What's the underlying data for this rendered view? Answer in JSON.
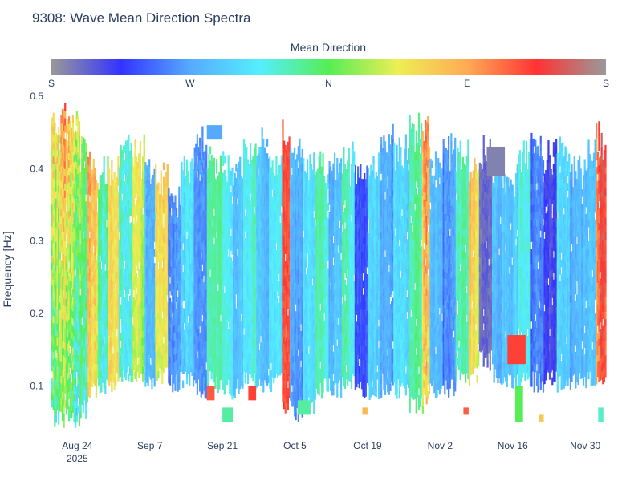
{
  "chart_data": {
    "type": "heatmap",
    "title": "9308: Wave Mean Direction Spectra",
    "ylabel": "Frequency [Hz]",
    "xlabel": "",
    "ylim": [
      0.035,
      0.5
    ],
    "yticks": [
      {
        "value": 0.1,
        "label": "0.1"
      },
      {
        "value": 0.2,
        "label": "0.2"
      },
      {
        "value": 0.3,
        "label": "0.3"
      },
      {
        "value": 0.4,
        "label": "0.4"
      },
      {
        "value": 0.5,
        "label": "0.5"
      }
    ],
    "x_start": "2025-08-19",
    "x_end": "2025-12-04",
    "x_range_days": [
      0,
      107
    ],
    "xticks": [
      {
        "day": 5,
        "label": "Aug 24",
        "sublabel": "2025"
      },
      {
        "day": 19,
        "label": "Sep 7",
        "sublabel": ""
      },
      {
        "day": 33,
        "label": "Sep 21",
        "sublabel": ""
      },
      {
        "day": 47,
        "label": "Oct 5",
        "sublabel": ""
      },
      {
        "day": 61,
        "label": "Oct 19",
        "sublabel": ""
      },
      {
        "day": 75,
        "label": "Nov 2",
        "sublabel": ""
      },
      {
        "day": 89,
        "label": "Nov 16",
        "sublabel": ""
      },
      {
        "day": 103,
        "label": "Nov 30",
        "sublabel": ""
      }
    ],
    "colorbar": {
      "title": "Mean Direction",
      "range_deg": [
        0,
        360
      ],
      "ticks": [
        {
          "value": 0,
          "label": "S"
        },
        {
          "value": 90,
          "label": "W"
        },
        {
          "value": 180,
          "label": "N"
        },
        {
          "value": 270,
          "label": "E"
        },
        {
          "value": 360,
          "label": "S"
        }
      ],
      "colorscale": [
        [
          0.0,
          "#999999"
        ],
        [
          0.125,
          "#3333ff"
        ],
        [
          0.25,
          "#55aaff"
        ],
        [
          0.375,
          "#55eeff"
        ],
        [
          0.5,
          "#55ee55"
        ],
        [
          0.625,
          "#eeee55"
        ],
        [
          0.75,
          "#ffaa55"
        ],
        [
          0.875,
          "#ff3333"
        ],
        [
          1.0,
          "#999999"
        ]
      ]
    },
    "freq_bin_hz": 0.01,
    "segments": [
      {
        "day_start": 0.0,
        "day_end": 5.5,
        "f_min": 0.05,
        "f_max": 0.47,
        "dir_mean": 210,
        "dir_spread": 160,
        "drift": 40
      },
      {
        "day_start": 5.5,
        "day_end": 7.0,
        "f_min": 0.06,
        "f_max": 0.42,
        "dir_mean": 170,
        "dir_spread": 120,
        "drift": 20
      },
      {
        "day_start": 7.0,
        "day_end": 9.0,
        "f_min": 0.09,
        "f_max": 0.4,
        "dir_mean": 230,
        "dir_spread": 90,
        "drift": 15
      },
      {
        "day_start": 9.0,
        "day_end": 11.0,
        "f_min": 0.09,
        "f_max": 0.39,
        "dir_mean": 150,
        "dir_spread": 80,
        "drift": 10
      },
      {
        "day_start": 11.0,
        "day_end": 13.0,
        "f_min": 0.1,
        "f_max": 0.4,
        "dir_mean": 240,
        "dir_spread": 60,
        "drift": 0
      },
      {
        "day_start": 13.0,
        "day_end": 15.5,
        "f_min": 0.1,
        "f_max": 0.43,
        "dir_mean": 150,
        "dir_spread": 70,
        "drift": 5
      },
      {
        "day_start": 15.5,
        "day_end": 18.0,
        "f_min": 0.11,
        "f_max": 0.42,
        "dir_mean": 215,
        "dir_spread": 60,
        "drift": 10
      },
      {
        "day_start": 18.0,
        "day_end": 20.0,
        "f_min": 0.1,
        "f_max": 0.4,
        "dir_mean": 100,
        "dir_spread": 60,
        "drift": -5
      },
      {
        "day_start": 20.0,
        "day_end": 22.5,
        "f_min": 0.11,
        "f_max": 0.39,
        "dir_mean": 230,
        "dir_spread": 60,
        "drift": 15
      },
      {
        "day_start": 22.5,
        "day_end": 25.0,
        "f_min": 0.1,
        "f_max": 0.36,
        "dir_mean": 80,
        "dir_spread": 50,
        "drift": 0
      },
      {
        "day_start": 25.0,
        "day_end": 27.5,
        "f_min": 0.1,
        "f_max": 0.4,
        "dir_mean": 120,
        "dir_spread": 60,
        "drift": 10
      },
      {
        "day_start": 27.5,
        "day_end": 30.0,
        "f_min": 0.09,
        "f_max": 0.44,
        "dir_mean": 85,
        "dir_spread": 45,
        "drift": 0
      },
      {
        "day_start": 30.0,
        "day_end": 33.0,
        "f_min": 0.1,
        "f_max": 0.41,
        "dir_mean": 160,
        "dir_spread": 35,
        "drift": 5
      },
      {
        "day_start": 33.0,
        "day_end": 35.0,
        "f_min": 0.09,
        "f_max": 0.4,
        "dir_mean": 135,
        "dir_spread": 40,
        "drift": -5
      },
      {
        "day_start": 35.0,
        "day_end": 37.0,
        "f_min": 0.09,
        "f_max": 0.4,
        "dir_mean": 110,
        "dir_spread": 40,
        "drift": 0
      },
      {
        "day_start": 37.0,
        "day_end": 39.5,
        "f_min": 0.1,
        "f_max": 0.42,
        "dir_mean": 145,
        "dir_spread": 45,
        "drift": 5
      },
      {
        "day_start": 39.5,
        "day_end": 42.0,
        "f_min": 0.1,
        "f_max": 0.43,
        "dir_mean": 100,
        "dir_spread": 45,
        "drift": 0
      },
      {
        "day_start": 42.0,
        "day_end": 44.5,
        "f_min": 0.1,
        "f_max": 0.4,
        "dir_mean": 130,
        "dir_spread": 45,
        "drift": 5
      },
      {
        "day_start": 44.5,
        "day_end": 46.0,
        "f_min": 0.07,
        "f_max": 0.45,
        "dir_mean": 310,
        "dir_spread": 50,
        "drift": 0
      },
      {
        "day_start": 46.0,
        "day_end": 48.5,
        "f_min": 0.06,
        "f_max": 0.43,
        "dir_mean": 85,
        "dir_spread": 45,
        "drift": 10
      },
      {
        "day_start": 48.5,
        "day_end": 51.0,
        "f_min": 0.07,
        "f_max": 0.41,
        "dir_mean": 125,
        "dir_spread": 40,
        "drift": 0
      },
      {
        "day_start": 51.0,
        "day_end": 53.5,
        "f_min": 0.09,
        "f_max": 0.4,
        "dir_mean": 150,
        "dir_spread": 45,
        "drift": 5
      },
      {
        "day_start": 53.5,
        "day_end": 56.0,
        "f_min": 0.09,
        "f_max": 0.4,
        "dir_mean": 110,
        "dir_spread": 45,
        "drift": -5
      },
      {
        "day_start": 56.0,
        "day_end": 58.5,
        "f_min": 0.1,
        "f_max": 0.41,
        "dir_mean": 145,
        "dir_spread": 50,
        "drift": 0
      },
      {
        "day_start": 58.5,
        "day_end": 61.0,
        "f_min": 0.09,
        "f_max": 0.4,
        "dir_mean": 60,
        "dir_spread": 45,
        "drift": 0
      },
      {
        "day_start": 61.0,
        "day_end": 63.5,
        "f_min": 0.09,
        "f_max": 0.4,
        "dir_mean": 120,
        "dir_spread": 45,
        "drift": 5
      },
      {
        "day_start": 63.5,
        "day_end": 66.0,
        "f_min": 0.09,
        "f_max": 0.44,
        "dir_mean": 90,
        "dir_spread": 40,
        "drift": 0
      },
      {
        "day_start": 66.0,
        "day_end": 69.0,
        "f_min": 0.09,
        "f_max": 0.42,
        "dir_mean": 120,
        "dir_spread": 45,
        "drift": -5
      },
      {
        "day_start": 69.0,
        "day_end": 71.5,
        "f_min": 0.07,
        "f_max": 0.45,
        "dir_mean": 160,
        "dir_spread": 55,
        "drift": 0
      },
      {
        "day_start": 71.5,
        "day_end": 73.0,
        "f_min": 0.07,
        "f_max": 0.45,
        "dir_mean": 240,
        "dir_spread": 120,
        "drift": 20
      },
      {
        "day_start": 73.0,
        "day_end": 75.5,
        "f_min": 0.09,
        "f_max": 0.4,
        "dir_mean": 100,
        "dir_spread": 45,
        "drift": 0
      },
      {
        "day_start": 75.5,
        "day_end": 78.0,
        "f_min": 0.09,
        "f_max": 0.42,
        "dir_mean": 85,
        "dir_spread": 45,
        "drift": 5
      },
      {
        "day_start": 78.0,
        "day_end": 80.5,
        "f_min": 0.11,
        "f_max": 0.42,
        "dir_mean": 150,
        "dir_spread": 60,
        "drift": 0
      },
      {
        "day_start": 80.5,
        "day_end": 82.5,
        "f_min": 0.11,
        "f_max": 0.4,
        "dir_mean": 230,
        "dir_spread": 60,
        "drift": 10
      },
      {
        "day_start": 82.5,
        "day_end": 85.0,
        "f_min": 0.13,
        "f_max": 0.42,
        "dir_mean": 20,
        "dir_spread": 40,
        "drift": 0
      },
      {
        "day_start": 85.0,
        "day_end": 87.0,
        "f_min": 0.11,
        "f_max": 0.4,
        "dir_mean": 95,
        "dir_spread": 45,
        "drift": 5
      },
      {
        "day_start": 87.0,
        "day_end": 90.0,
        "f_min": 0.1,
        "f_max": 0.38,
        "dir_mean": 110,
        "dir_spread": 45,
        "drift": 0
      },
      {
        "day_start": 90.0,
        "day_end": 92.5,
        "f_min": 0.1,
        "f_max": 0.42,
        "dir_mean": 140,
        "dir_spread": 50,
        "drift": 5
      },
      {
        "day_start": 92.5,
        "day_end": 95.0,
        "f_min": 0.1,
        "f_max": 0.43,
        "dir_mean": 70,
        "dir_spread": 50,
        "drift": 0
      },
      {
        "day_start": 95.0,
        "day_end": 97.5,
        "f_min": 0.11,
        "f_max": 0.42,
        "dir_mean": 30,
        "dir_spread": 45,
        "drift": 0
      },
      {
        "day_start": 97.5,
        "day_end": 100.0,
        "f_min": 0.1,
        "f_max": 0.43,
        "dir_mean": 120,
        "dir_spread": 45,
        "drift": 5
      },
      {
        "day_start": 100.0,
        "day_end": 102.5,
        "f_min": 0.1,
        "f_max": 0.4,
        "dir_mean": 90,
        "dir_spread": 45,
        "drift": 0
      },
      {
        "day_start": 102.5,
        "day_end": 105.0,
        "f_min": 0.1,
        "f_max": 0.42,
        "dir_mean": 100,
        "dir_spread": 50,
        "drift": 0
      },
      {
        "day_start": 105.0,
        "day_end": 107.0,
        "f_min": 0.1,
        "f_max": 0.44,
        "dir_mean": 300,
        "dir_spread": 90,
        "drift": 10
      }
    ],
    "patches": [
      {
        "day_start": 33.0,
        "day_end": 35.0,
        "f_min": 0.05,
        "f_max": 0.07,
        "dir": 160
      },
      {
        "day_start": 30.0,
        "day_end": 33.0,
        "f_min": 0.44,
        "f_max": 0.46,
        "dir": 90
      },
      {
        "day_start": 88.0,
        "day_end": 91.5,
        "f_min": 0.13,
        "f_max": 0.17,
        "dir": 310
      },
      {
        "day_start": 84.0,
        "day_end": 87.5,
        "f_min": 0.39,
        "f_max": 0.43,
        "dir": 10
      },
      {
        "day_start": 89.5,
        "day_end": 91.0,
        "f_min": 0.05,
        "f_max": 0.1,
        "dir": 180
      },
      {
        "day_start": 94.0,
        "day_end": 95.0,
        "f_min": 0.05,
        "f_max": 0.06,
        "dir": 250
      },
      {
        "day_start": 105.5,
        "day_end": 106.5,
        "f_min": 0.05,
        "f_max": 0.07,
        "dir": 150
      },
      {
        "day_start": 47.5,
        "day_end": 50.0,
        "f_min": 0.06,
        "f_max": 0.08,
        "dir": 160
      },
      {
        "day_start": 60.0,
        "day_end": 61.0,
        "f_min": 0.06,
        "f_max": 0.07,
        "dir": 260
      },
      {
        "day_start": 79.5,
        "day_end": 80.5,
        "f_min": 0.06,
        "f_max": 0.07,
        "dir": 300
      },
      {
        "day_start": 38.0,
        "day_end": 39.5,
        "f_min": 0.08,
        "f_max": 0.1,
        "dir": 310
      },
      {
        "day_start": 30.0,
        "day_end": 31.5,
        "f_min": 0.08,
        "f_max": 0.1,
        "dir": 300
      }
    ]
  }
}
